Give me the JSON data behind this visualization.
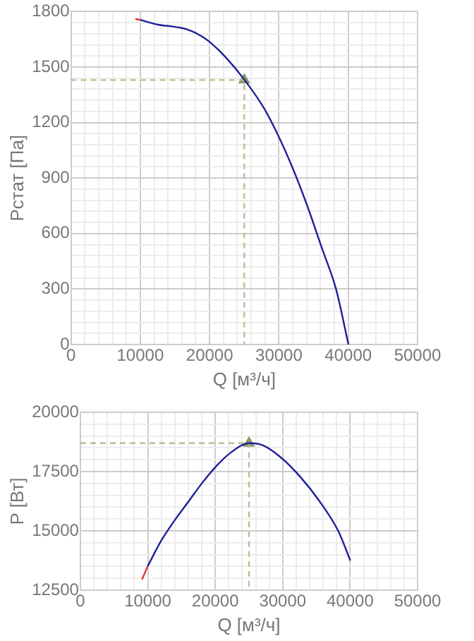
{
  "chart_data": [
    {
      "type": "line",
      "xlabel": "Q [м³/ч]",
      "ylabel": "Pстат [Па]",
      "xlim": [
        0,
        50000
      ],
      "ylim": [
        0,
        1800
      ],
      "xticks": [
        0,
        {
          "value": 2000,
          "label": null
        },
        {
          "value": 4000,
          "label": null
        },
        {
          "value": 6000,
          "label": null
        },
        {
          "value": 8000,
          "label": null
        },
        10000,
        {
          "value": 12000,
          "label": null
        },
        {
          "value": 14000,
          "label": null
        },
        {
          "value": 16000,
          "label": null
        },
        {
          "value": 18000,
          "label": null
        },
        20000,
        {
          "value": 22000,
          "label": null
        },
        {
          "value": 24000,
          "label": null
        },
        {
          "value": 26000,
          "label": null
        },
        {
          "value": 28000,
          "label": null
        },
        30000,
        {
          "value": 32000,
          "label": null
        },
        {
          "value": 34000,
          "label": null
        },
        {
          "value": 36000,
          "label": null
        },
        {
          "value": 38000,
          "label": null
        },
        40000,
        {
          "value": 42000,
          "label": null
        },
        {
          "value": 44000,
          "label": null
        },
        {
          "value": 46000,
          "label": null
        },
        {
          "value": 48000,
          "label": null
        },
        50000
      ],
      "yticks": [
        0,
        {
          "value": 60,
          "label": null
        },
        {
          "value": 120,
          "label": null
        },
        {
          "value": 180,
          "label": null
        },
        {
          "value": 240,
          "label": null
        },
        300,
        {
          "value": 360,
          "label": null
        },
        {
          "value": 420,
          "label": null
        },
        {
          "value": 480,
          "label": null
        },
        {
          "value": 540,
          "label": null
        },
        600,
        {
          "value": 660,
          "label": null
        },
        {
          "value": 720,
          "label": null
        },
        {
          "value": 780,
          "label": null
        },
        {
          "value": 840,
          "label": null
        },
        900,
        {
          "value": 960,
          "label": null
        },
        {
          "value": 1020,
          "label": null
        },
        {
          "value": 1080,
          "label": null
        },
        {
          "value": 1140,
          "label": null
        },
        1200,
        {
          "value": 1260,
          "label": null
        },
        {
          "value": 1320,
          "label": null
        },
        {
          "value": 1380,
          "label": null
        },
        {
          "value": 1440,
          "label": null
        },
        1500,
        {
          "value": 1560,
          "label": null
        },
        {
          "value": 1620,
          "label": null
        },
        {
          "value": 1680,
          "label": null
        },
        {
          "value": 1740,
          "label": null
        },
        1800
      ],
      "grid": true,
      "legend": false,
      "marker": "none",
      "series": [
        {
          "color": "#e03030",
          "x": [
            9280,
            10000
          ],
          "values": [
            1760,
            1755
          ]
        },
        {
          "color": "#20209a",
          "x": [
            10000,
            12600,
            14680,
            16760,
            18840,
            20220,
            22300,
            25070,
            27840,
            29920,
            32000,
            34070,
            36150,
            38230,
            40030
          ],
          "values": [
            1755,
            1729,
            1719,
            1704,
            1667,
            1629,
            1554,
            1429,
            1278,
            1128,
            952,
            752,
            526,
            301,
            0
          ]
        },
        {
          "color": "#b8bf90",
          "line_style": "dashed",
          "x": [
            0,
            25000,
            25000
          ],
          "values": [
            1430,
            1430,
            0
          ]
        },
        {
          "type": "scatter",
          "color": "#8a9a6a",
          "marker": "triangle",
          "x": [
            25000
          ],
          "values": [
            1430
          ]
        }
      ]
    },
    {
      "type": "line",
      "xlabel": "Q [м³/ч]",
      "ylabel": "P [Вт]",
      "xlim": [
        0,
        50000
      ],
      "ylim": [
        12500,
        20000
      ],
      "xticks": [
        0,
        {
          "value": 2000,
          "label": null
        },
        {
          "value": 4000,
          "label": null
        },
        {
          "value": 6000,
          "label": null
        },
        {
          "value": 8000,
          "label": null
        },
        10000,
        {
          "value": 12000,
          "label": null
        },
        {
          "value": 14000,
          "label": null
        },
        {
          "value": 16000,
          "label": null
        },
        {
          "value": 18000,
          "label": null
        },
        20000,
        {
          "value": 22000,
          "label": null
        },
        {
          "value": 24000,
          "label": null
        },
        {
          "value": 26000,
          "label": null
        },
        {
          "value": 28000,
          "label": null
        },
        30000,
        {
          "value": 32000,
          "label": null
        },
        {
          "value": 34000,
          "label": null
        },
        {
          "value": 36000,
          "label": null
        },
        {
          "value": 38000,
          "label": null
        },
        40000,
        {
          "value": 42000,
          "label": null
        },
        {
          "value": 44000,
          "label": null
        },
        {
          "value": 46000,
          "label": null
        },
        {
          "value": 48000,
          "label": null
        },
        50000
      ],
      "yticks": [
        12500,
        {
          "value": 13000,
          "label": null
        },
        {
          "value": 13500,
          "label": null
        },
        {
          "value": 14000,
          "label": null
        },
        {
          "value": 14500,
          "label": null
        },
        15000,
        {
          "value": 15500,
          "label": null
        },
        {
          "value": 16000,
          "label": null
        },
        {
          "value": 16500,
          "label": null
        },
        {
          "value": 17000,
          "label": null
        },
        17500,
        {
          "value": 18000,
          "label": null
        },
        {
          "value": 18500,
          "label": null
        },
        {
          "value": 19000,
          "label": null
        },
        {
          "value": 19500,
          "label": null
        },
        20000
      ],
      "grid": true,
      "legend": false,
      "marker": "none",
      "series": [
        {
          "color": "#e03030",
          "x": [
            9140,
            9970
          ],
          "values": [
            12950,
            13500
          ]
        },
        {
          "color": "#20209a",
          "x": [
            9970,
            11910,
            13990,
            16070,
            18140,
            20220,
            22300,
            25070,
            27150,
            29920,
            32690,
            35460,
            38230,
            40030
          ],
          "values": [
            13500,
            14550,
            15450,
            16250,
            17050,
            17750,
            18300,
            18700,
            18600,
            18050,
            17250,
            16250,
            15000,
            13750
          ]
        },
        {
          "color": "#b8bf90",
          "line_style": "dashed",
          "x": [
            0,
            25000,
            25000
          ],
          "values": [
            18700,
            18700,
            12500
          ]
        },
        {
          "type": "scatter",
          "color": "#8a9a6a",
          "marker": "triangle",
          "x": [
            25000
          ],
          "values": [
            18700
          ]
        }
      ]
    }
  ]
}
